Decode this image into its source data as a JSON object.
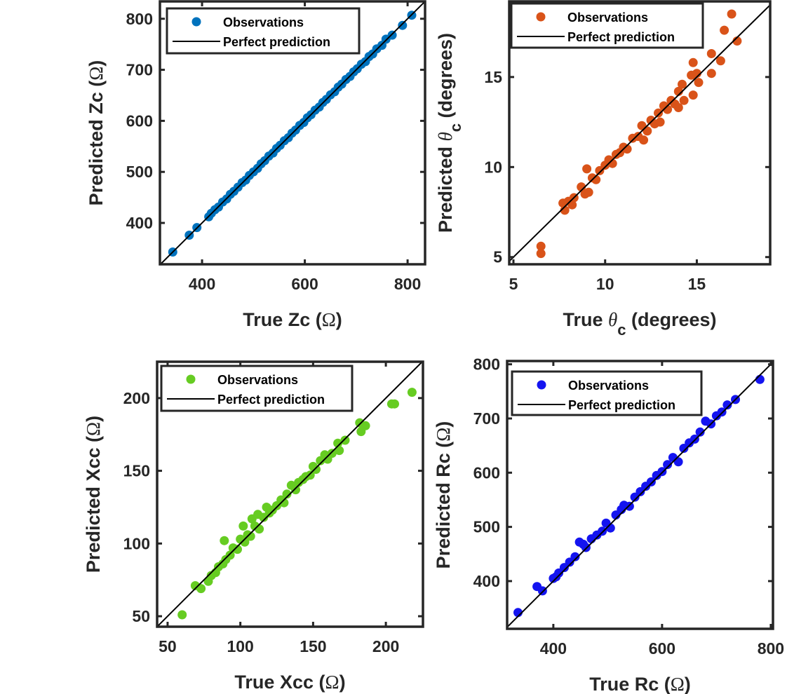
{
  "chart_data": [
    {
      "type": "scatter",
      "xlabel": [
        {
          "t": "True Zc ("
        },
        {
          "t": "Ω",
          "cls": "sym"
        },
        {
          "t": ")"
        }
      ],
      "ylabel": [
        {
          "t": "Predicted Zc ("
        },
        {
          "t": "Ω",
          "cls": "sym"
        },
        {
          "t": ")"
        }
      ],
      "xlim": [
        318,
        834
      ],
      "ylim": [
        319,
        834
      ],
      "xticks": [
        400,
        600,
        800
      ],
      "yticks": [
        400,
        500,
        600,
        700,
        800
      ],
      "color": "#0072BD",
      "legend": {
        "placement": "top-left",
        "entries": [
          "Observations",
          "Perfect prediction"
        ]
      },
      "points": [
        [
          343,
          343
        ],
        [
          375,
          376
        ],
        [
          390,
          391
        ],
        [
          413,
          412
        ],
        [
          418,
          419
        ],
        [
          425,
          426
        ],
        [
          432,
          431
        ],
        [
          440,
          441
        ],
        [
          448,
          447
        ],
        [
          455,
          456
        ],
        [
          462,
          462
        ],
        [
          470,
          470
        ],
        [
          478,
          479
        ],
        [
          485,
          484
        ],
        [
          492,
          493
        ],
        [
          500,
          500
        ],
        [
          508,
          507
        ],
        [
          515,
          516
        ],
        [
          522,
          522
        ],
        [
          530,
          531
        ],
        [
          538,
          537
        ],
        [
          545,
          546
        ],
        [
          552,
          552
        ],
        [
          560,
          561
        ],
        [
          568,
          567
        ],
        [
          575,
          576
        ],
        [
          582,
          582
        ],
        [
          590,
          591
        ],
        [
          598,
          597
        ],
        [
          605,
          606
        ],
        [
          612,
          612
        ],
        [
          620,
          621
        ],
        [
          628,
          627
        ],
        [
          635,
          636
        ],
        [
          642,
          642
        ],
        [
          650,
          651
        ],
        [
          658,
          657
        ],
        [
          665,
          666
        ],
        [
          672,
          672
        ],
        [
          680,
          681
        ],
        [
          688,
          687
        ],
        [
          695,
          696
        ],
        [
          702,
          702
        ],
        [
          710,
          711
        ],
        [
          718,
          716
        ],
        [
          725,
          726
        ],
        [
          732,
          731
        ],
        [
          740,
          741
        ],
        [
          750,
          748
        ],
        [
          758,
          760
        ],
        [
          770,
          768
        ],
        [
          790,
          787
        ],
        [
          808,
          807
        ]
      ]
    },
    {
      "type": "scatter",
      "xlabel": [
        {
          "t": "True  "
        },
        {
          "t": "θ",
          "cls": "isym"
        },
        {
          "t": "c",
          "sub": true
        },
        {
          "t": " (degrees)"
        }
      ],
      "ylabel": [
        {
          "t": "Predicted "
        },
        {
          "t": "θ",
          "cls": "isym"
        },
        {
          "t": "c",
          "sub": true
        },
        {
          "t": " (degrees)"
        }
      ],
      "xlim": [
        4.77,
        19.0
      ],
      "ylim": [
        4.6,
        19.2
      ],
      "xticks": [
        5,
        10,
        15
      ],
      "yticks": [
        5,
        10,
        15
      ],
      "color": "#D95319",
      "legend": {
        "placement": "top-left",
        "entries": [
          "Observations",
          "Perfect prediction"
        ]
      },
      "points": [
        [
          6.5,
          5.6
        ],
        [
          6.5,
          5.2
        ],
        [
          7.7,
          8.0
        ],
        [
          7.8,
          7.6
        ],
        [
          8.0,
          8.1
        ],
        [
          8.2,
          7.9
        ],
        [
          8.3,
          8.3
        ],
        [
          8.7,
          8.9
        ],
        [
          8.9,
          8.5
        ],
        [
          9.0,
          9.9
        ],
        [
          9.1,
          8.6
        ],
        [
          9.3,
          9.4
        ],
        [
          9.5,
          9.3
        ],
        [
          9.7,
          9.8
        ],
        [
          10.0,
          10.1
        ],
        [
          10.2,
          10.4
        ],
        [
          10.4,
          10.2
        ],
        [
          10.6,
          10.7
        ],
        [
          10.8,
          10.8
        ],
        [
          11.0,
          11.1
        ],
        [
          11.2,
          11.0
        ],
        [
          11.5,
          11.6
        ],
        [
          11.8,
          11.7
        ],
        [
          12.0,
          12.3
        ],
        [
          12.1,
          11.5
        ],
        [
          12.3,
          12.0
        ],
        [
          12.5,
          12.6
        ],
        [
          12.7,
          12.4
        ],
        [
          12.9,
          13.0
        ],
        [
          13.0,
          12.5
        ],
        [
          13.2,
          13.4
        ],
        [
          13.4,
          13.2
        ],
        [
          13.6,
          13.7
        ],
        [
          13.8,
          13.5
        ],
        [
          14.0,
          14.2
        ],
        [
          14.0,
          13.3
        ],
        [
          14.2,
          14.6
        ],
        [
          14.3,
          13.7
        ],
        [
          14.7,
          15.1
        ],
        [
          14.8,
          15.8
        ],
        [
          14.8,
          14.0
        ],
        [
          15.0,
          15.2
        ],
        [
          15.1,
          14.7
        ],
        [
          15.8,
          16.3
        ],
        [
          15.8,
          15.2
        ],
        [
          16.3,
          15.9
        ],
        [
          16.5,
          17.6
        ],
        [
          16.9,
          18.5
        ],
        [
          17.2,
          17.0
        ]
      ]
    },
    {
      "type": "scatter",
      "xlabel": [
        {
          "t": "True Xcc ("
        },
        {
          "t": "Ω",
          "cls": "sym"
        },
        {
          "t": ")"
        }
      ],
      "ylabel": [
        {
          "t": "Predicted Xcc ("
        },
        {
          "t": "Ω",
          "cls": "sym"
        },
        {
          "t": ")"
        }
      ],
      "xlim": [
        42.8,
        225.5
      ],
      "ylim": [
        42.8,
        225
      ],
      "xticks": [
        50,
        100,
        150,
        200
      ],
      "yticks": [
        50,
        100,
        150,
        200
      ],
      "color": "#66CC22",
      "legend": {
        "placement": "top-left",
        "entries": [
          "Observations",
          "Perfect prediction"
        ]
      },
      "points": [
        [
          60,
          51
        ],
        [
          69,
          71
        ],
        [
          73,
          69
        ],
        [
          78,
          74
        ],
        [
          80,
          78
        ],
        [
          83,
          80
        ],
        [
          85,
          84
        ],
        [
          88,
          86
        ],
        [
          89,
          102
        ],
        [
          90,
          89
        ],
        [
          93,
          92
        ],
        [
          95,
          97
        ],
        [
          98,
          96
        ],
        [
          100,
          103
        ],
        [
          102,
          112
        ],
        [
          103,
          101
        ],
        [
          105,
          106
        ],
        [
          107,
          105
        ],
        [
          108,
          117
        ],
        [
          110,
          112
        ],
        [
          112,
          120
        ],
        [
          113,
          110
        ],
        [
          116,
          118
        ],
        [
          118,
          125
        ],
        [
          120,
          121
        ],
        [
          122,
          123
        ],
        [
          125,
          126
        ],
        [
          128,
          130
        ],
        [
          130,
          128
        ],
        [
          132,
          134
        ],
        [
          135,
          140
        ],
        [
          138,
          137
        ],
        [
          140,
          142
        ],
        [
          143,
          144
        ],
        [
          145,
          146
        ],
        [
          148,
          147
        ],
        [
          150,
          153
        ],
        [
          152,
          151
        ],
        [
          155,
          157
        ],
        [
          158,
          161
        ],
        [
          160,
          158
        ],
        [
          163,
          162
        ],
        [
          167,
          169
        ],
        [
          168,
          164
        ],
        [
          172,
          171
        ],
        [
          182,
          183
        ],
        [
          183,
          177
        ],
        [
          186,
          181
        ],
        [
          204,
          196
        ],
        [
          206,
          196
        ],
        [
          218,
          204
        ]
      ]
    },
    {
      "type": "scatter",
      "xlabel": [
        {
          "t": "True Rc ("
        },
        {
          "t": "Ω",
          "cls": "sym"
        },
        {
          "t": ")"
        }
      ],
      "ylabel": [
        {
          "t": "Predicted Rc ("
        },
        {
          "t": "Ω",
          "cls": "sym"
        },
        {
          "t": ")"
        }
      ],
      "xlim": [
        315,
        804
      ],
      "ylim": [
        312,
        806
      ],
      "xticks": [
        400,
        600,
        800
      ],
      "yticks": [
        400,
        500,
        600,
        700,
        800
      ],
      "color": "#1414F0",
      "legend": {
        "placement": "top-left",
        "entries": [
          "Observations",
          "Perfect prediction"
        ]
      },
      "points": [
        [
          335,
          342
        ],
        [
          370,
          390
        ],
        [
          380,
          382
        ],
        [
          400,
          405
        ],
        [
          405,
          408
        ],
        [
          410,
          415
        ],
        [
          420,
          425
        ],
        [
          430,
          435
        ],
        [
          440,
          445
        ],
        [
          448,
          472
        ],
        [
          455,
          468
        ],
        [
          460,
          462
        ],
        [
          470,
          478
        ],
        [
          480,
          485
        ],
        [
          490,
          492
        ],
        [
          497,
          507
        ],
        [
          505,
          498
        ],
        [
          515,
          522
        ],
        [
          525,
          532
        ],
        [
          530,
          540
        ],
        [
          540,
          538
        ],
        [
          550,
          555
        ],
        [
          560,
          565
        ],
        [
          570,
          575
        ],
        [
          580,
          583
        ],
        [
          590,
          595
        ],
        [
          600,
          602
        ],
        [
          610,
          615
        ],
        [
          620,
          628
        ],
        [
          630,
          620
        ],
        [
          640,
          645
        ],
        [
          650,
          655
        ],
        [
          660,
          662
        ],
        [
          670,
          675
        ],
        [
          680,
          695
        ],
        [
          690,
          690
        ],
        [
          700,
          705
        ],
        [
          710,
          712
        ],
        [
          720,
          725
        ],
        [
          735,
          735
        ],
        [
          780,
          772
        ]
      ]
    }
  ]
}
